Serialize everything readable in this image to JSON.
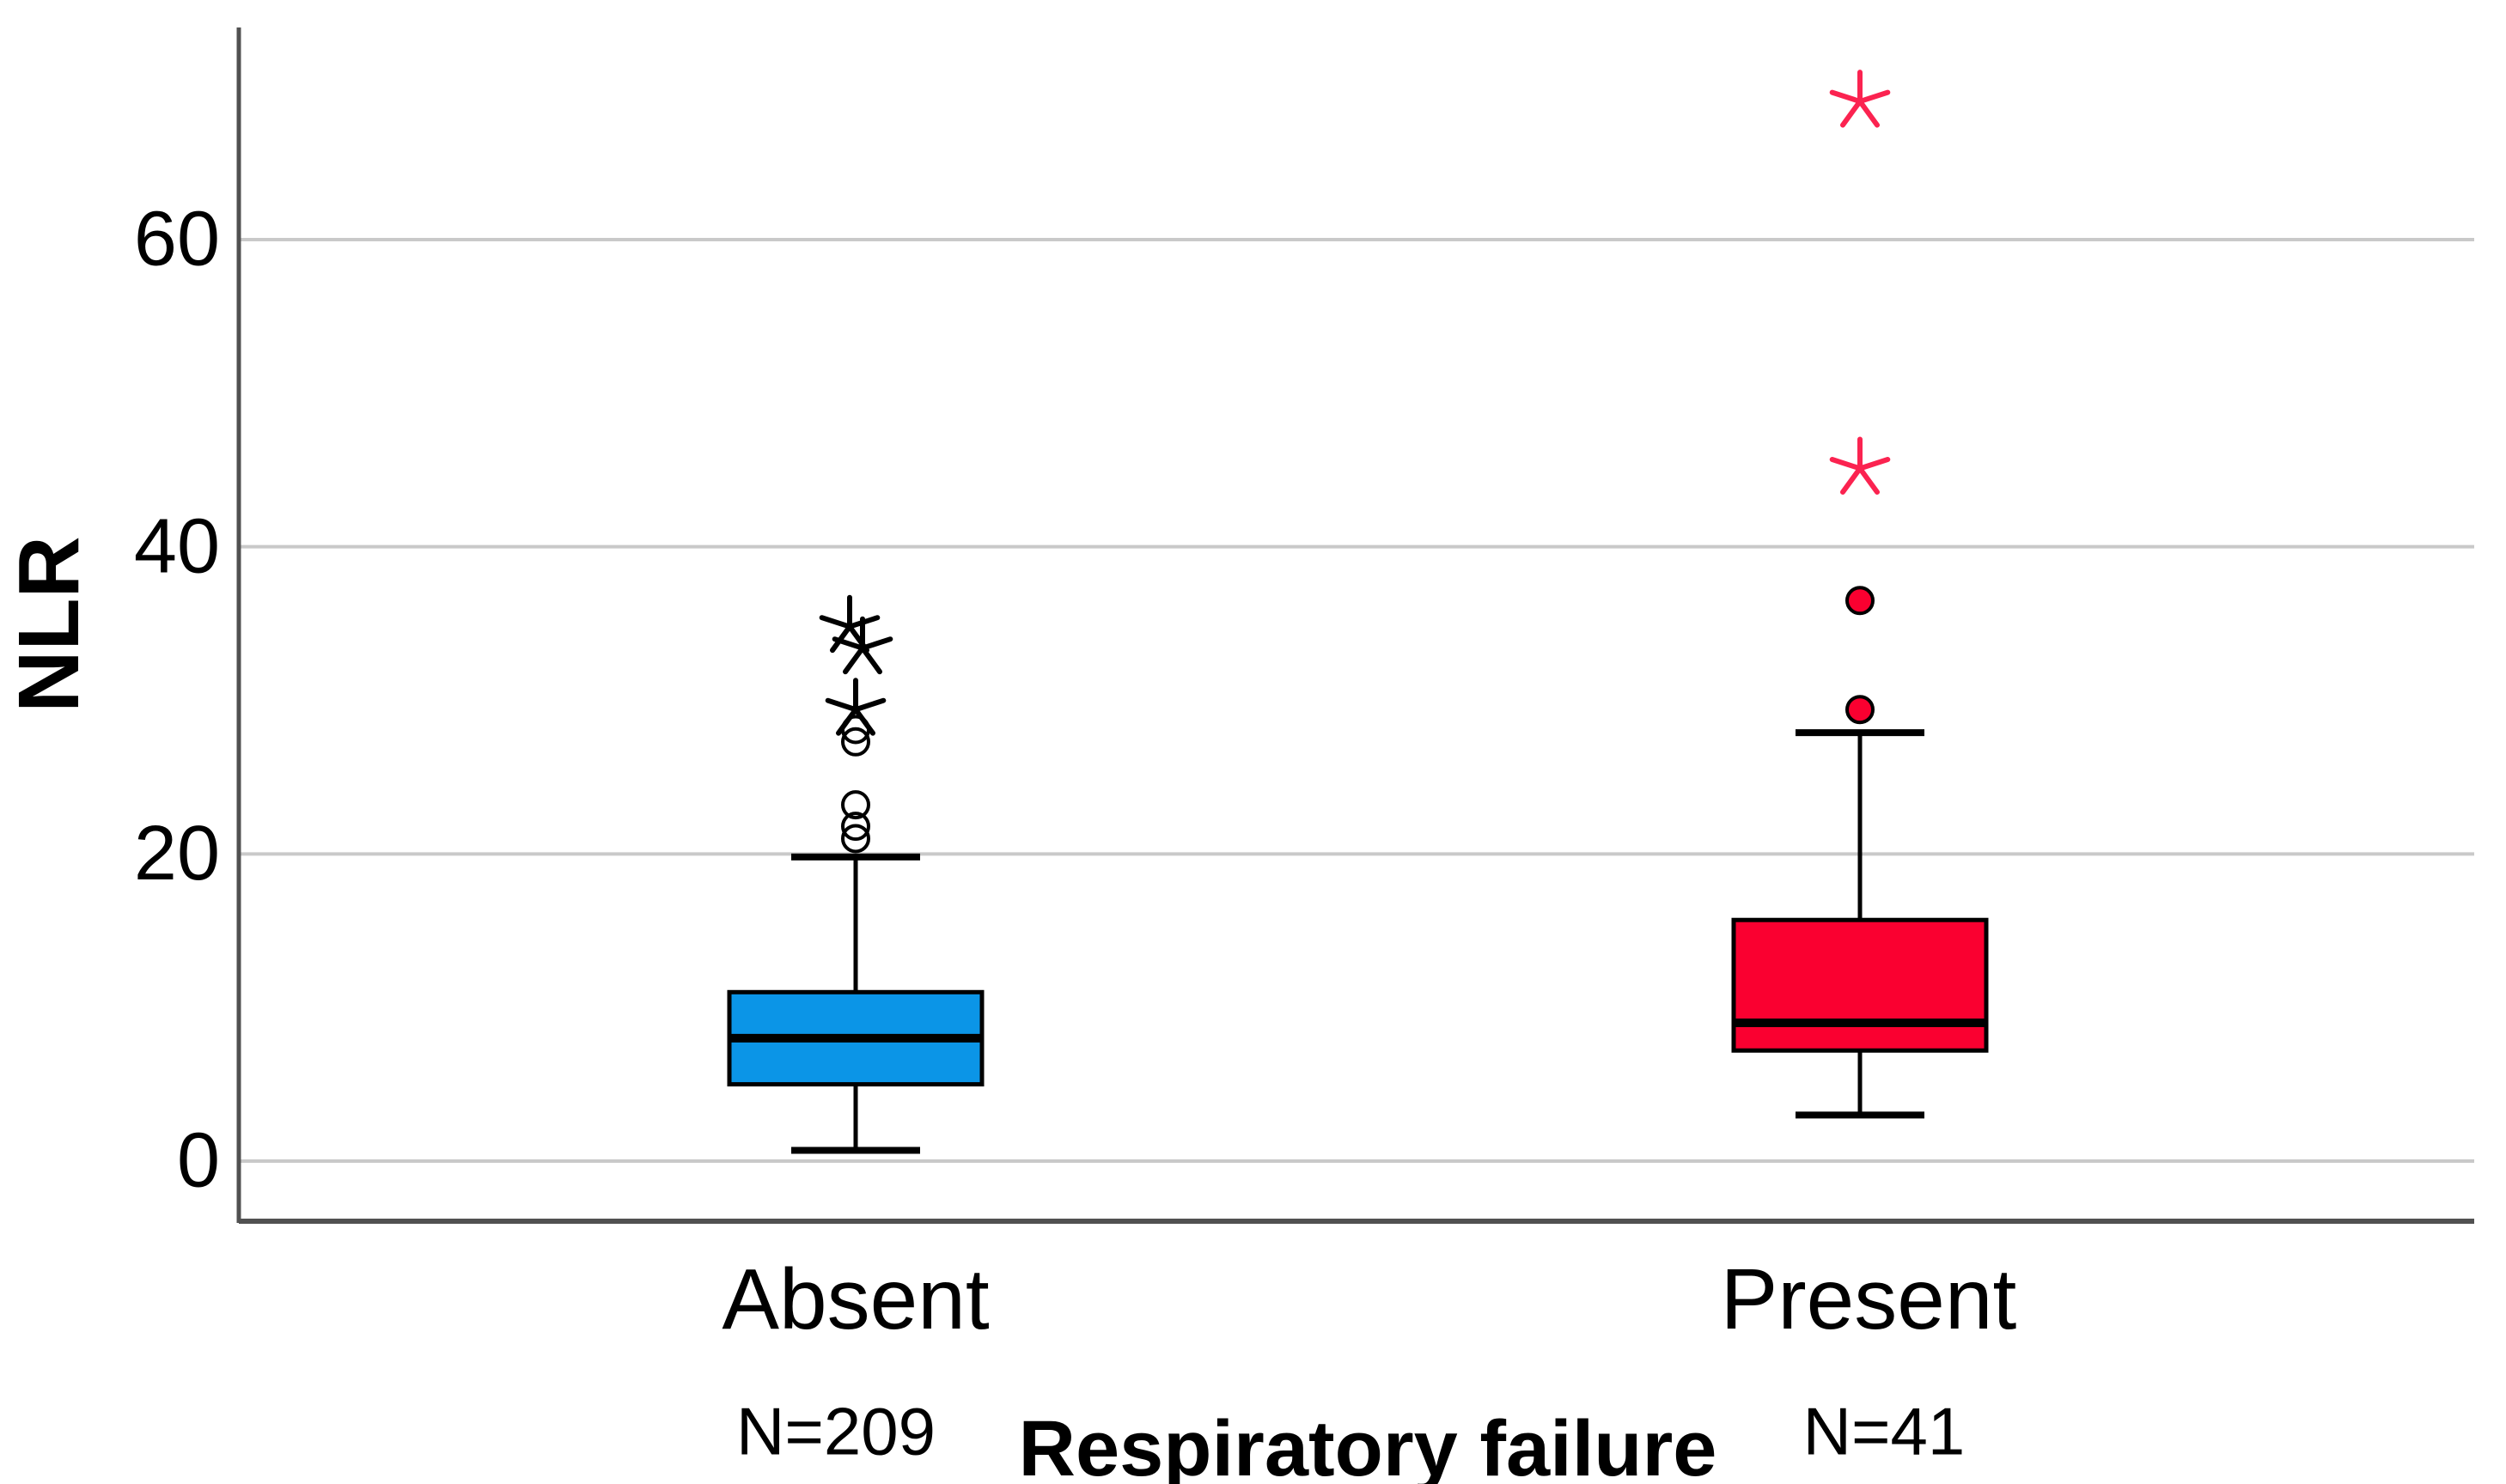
{
  "chart_data": {
    "type": "boxplot",
    "title": "",
    "ylabel": "NLR",
    "xlabel": "Respiratory failure",
    "yticks": [
      0,
      20,
      40,
      60
    ],
    "ylim": [
      -4,
      74
    ],
    "grid": "horizontal-light-gray",
    "legend": "none",
    "categories": [
      "Absent",
      "Present"
    ],
    "n_labels": [
      "N=209",
      "N=41"
    ],
    "series": [
      {
        "name": "Absent",
        "n": 209,
        "n_label": "N=209",
        "box_color": "#0B95E7",
        "whisker_low": 0.7,
        "q1": 5.0,
        "median": 8.0,
        "q3": 11.0,
        "whisker_high": 19.8,
        "outlier_circles": [
          21.0,
          21.8,
          23.2,
          27.3,
          28.1
        ],
        "outlier_circle_style": "open",
        "outlier_stars": [
          {
            "v": 29.4,
            "dx": 0
          },
          {
            "v": 33.4,
            "dx": 8
          },
          {
            "v": 34.8,
            "dx": -7
          }
        ],
        "star_color": "#000000"
      },
      {
        "name": "Present",
        "n": 41,
        "n_label": "N=41",
        "box_color": "#FA0030",
        "whisker_low": 3.0,
        "q1": 7.2,
        "median": 9.0,
        "q3": 15.7,
        "whisker_high": 27.9,
        "outlier_circles": [
          29.4,
          36.5
        ],
        "outlier_circle_style": "filled",
        "outlier_stars": [
          {
            "v": 45.1,
            "dx": 0
          },
          {
            "v": 69.0,
            "dx": 0
          }
        ],
        "star_color": "#FB2350"
      }
    ],
    "colors": {
      "absent_box": "#0B95E7",
      "present_box": "#FA0030",
      "present_star": "#FB2350",
      "outline": "#000000",
      "grid": "#C9C9C9",
      "axis": "#515151"
    }
  }
}
